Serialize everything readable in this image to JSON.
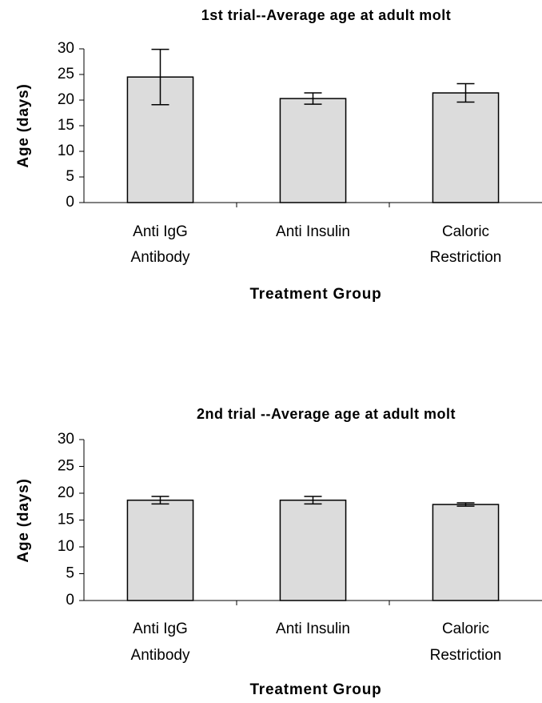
{
  "chart_data": [
    {
      "type": "bar",
      "title": "1st trial--Average age at adult molt",
      "categories": [
        [
          "Anti IgG",
          "Antibody"
        ],
        [
          "Anti Insulin"
        ],
        [
          "Caloric",
          "Restriction"
        ]
      ],
      "values": [
        24.5,
        20.3,
        21.4
      ],
      "errors": [
        5.4,
        1.1,
        1.8
      ],
      "color": "#dcdcdc",
      "x_label": "Treatment Group",
      "y_label": "Age (days)",
      "ylim": [
        0,
        30
      ],
      "yticks": [
        0,
        5,
        10,
        15,
        20,
        25,
        30
      ]
    },
    {
      "type": "bar",
      "title": "2nd trial --Average age at adult molt",
      "categories": [
        [
          "Anti IgG",
          "Antibody"
        ],
        [
          "Anti Insulin"
        ],
        [
          "Caloric",
          "Restriction"
        ]
      ],
      "values": [
        18.7,
        18.7,
        17.9
      ],
      "errors": [
        0.7,
        0.7,
        0.3
      ],
      "color": "#dcdcdc",
      "x_label": "Treatment Group",
      "y_label": "Age (days)",
      "ylim": [
        0,
        30
      ],
      "yticks": [
        0,
        5,
        10,
        15,
        20,
        25,
        30
      ]
    }
  ]
}
